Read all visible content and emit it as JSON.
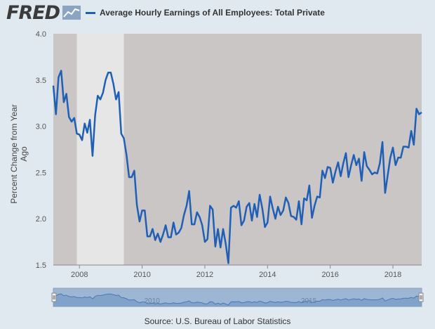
{
  "header": {
    "logo_text": "FRED",
    "logo_icon": "line-chart-icon",
    "series_title": "Average Hourly Earnings of All Employees: Total Private",
    "series_color": "#1f5fb5"
  },
  "y_axis_label": "Percent Change from Year Ago",
  "source_text": "Source: U.S. Bureau of Labor Statistics",
  "colors": {
    "plot_bg": "#cbc6c6",
    "recession": "#e6e6e6",
    "line": "#1f5fb5",
    "page_bg": "#e1e9f0"
  },
  "navigator": {
    "tick_labels": [
      "2010",
      "2015"
    ]
  },
  "chart_data": {
    "type": "line",
    "title": "",
    "ylabel": "Percent Change from Year Ago",
    "ylim": [
      1.5,
      4.0
    ],
    "yticks": [
      "1.5",
      "2.0",
      "2.5",
      "3.0",
      "3.5",
      "4.0"
    ],
    "xlim": [
      "2007-03",
      "2018-12"
    ],
    "xticks": [
      "2008",
      "2010",
      "2012",
      "2014",
      "2016",
      "2018"
    ],
    "recession": {
      "start": "2007-12",
      "end": "2009-06"
    },
    "grid": false,
    "legend": "top-left",
    "series": [
      {
        "name": "Average Hourly Earnings of All Employees: Total Private",
        "x": [
          "2007-03",
          "2007-04",
          "2007-05",
          "2007-06",
          "2007-07",
          "2007-08",
          "2007-09",
          "2007-10",
          "2007-11",
          "2007-12",
          "2008-01",
          "2008-02",
          "2008-03",
          "2008-04",
          "2008-05",
          "2008-06",
          "2008-07",
          "2008-08",
          "2008-09",
          "2008-10",
          "2008-11",
          "2008-12",
          "2009-01",
          "2009-02",
          "2009-03",
          "2009-04",
          "2009-05",
          "2009-06",
          "2009-07",
          "2009-08",
          "2009-09",
          "2009-10",
          "2009-11",
          "2009-12",
          "2010-01",
          "2010-02",
          "2010-03",
          "2010-04",
          "2010-05",
          "2010-06",
          "2010-07",
          "2010-08",
          "2010-09",
          "2010-10",
          "2010-11",
          "2010-12",
          "2011-01",
          "2011-02",
          "2011-03",
          "2011-04",
          "2011-05",
          "2011-06",
          "2011-07",
          "2011-08",
          "2011-09",
          "2011-10",
          "2011-11",
          "2011-12",
          "2012-01",
          "2012-02",
          "2012-03",
          "2012-04",
          "2012-05",
          "2012-06",
          "2012-07",
          "2012-08",
          "2012-09",
          "2012-10",
          "2012-11",
          "2012-12",
          "2013-01",
          "2013-02",
          "2013-03",
          "2013-04",
          "2013-05",
          "2013-06",
          "2013-07",
          "2013-08",
          "2013-09",
          "2013-10",
          "2013-11",
          "2013-12",
          "2014-01",
          "2014-02",
          "2014-03",
          "2014-04",
          "2014-05",
          "2014-06",
          "2014-07",
          "2014-08",
          "2014-09",
          "2014-10",
          "2014-11",
          "2014-12",
          "2015-01",
          "2015-02",
          "2015-03",
          "2015-04",
          "2015-05",
          "2015-06",
          "2015-07",
          "2015-08",
          "2015-09",
          "2015-10",
          "2015-11",
          "2015-12",
          "2016-01",
          "2016-02",
          "2016-03",
          "2016-04",
          "2016-05",
          "2016-06",
          "2016-07",
          "2016-08",
          "2016-09",
          "2016-10",
          "2016-11",
          "2016-12",
          "2017-01",
          "2017-02",
          "2017-03",
          "2017-04",
          "2017-05",
          "2017-06",
          "2017-07",
          "2017-08",
          "2017-09",
          "2017-10",
          "2017-11",
          "2017-12",
          "2018-01",
          "2018-02",
          "2018-03",
          "2018-04",
          "2018-05",
          "2018-06",
          "2018-07",
          "2018-08",
          "2018-09",
          "2018-10",
          "2018-11",
          "2018-12"
        ],
        "values": [
          3.44,
          3.13,
          3.53,
          3.6,
          3.26,
          3.35,
          3.1,
          3.05,
          3.09,
          2.92,
          2.91,
          2.85,
          3.03,
          2.93,
          3.07,
          2.68,
          3.12,
          3.33,
          3.29,
          3.36,
          3.5,
          3.58,
          3.58,
          3.46,
          3.29,
          3.37,
          2.92,
          2.87,
          2.69,
          2.45,
          2.45,
          2.52,
          2.15,
          1.97,
          2.09,
          2.09,
          1.81,
          1.81,
          1.89,
          1.77,
          1.84,
          1.75,
          1.83,
          1.93,
          1.8,
          1.8,
          1.96,
          1.83,
          1.85,
          1.9,
          2.04,
          2.14,
          2.3,
          1.94,
          1.94,
          2.07,
          2.02,
          1.93,
          1.75,
          1.78,
          2.14,
          2.1,
          1.7,
          1.89,
          1.69,
          1.89,
          1.73,
          1.52,
          2.12,
          2.14,
          2.12,
          2.19,
          1.93,
          1.98,
          2.13,
          2.17,
          1.98,
          2.16,
          2.02,
          2.26,
          2.11,
          1.91,
          1.96,
          2.24,
          2.11,
          2.0,
          2.13,
          2.04,
          2.09,
          2.23,
          2.17,
          2.03,
          2.02,
          1.99,
          2.19,
          1.94,
          2.22,
          2.2,
          2.36,
          2.01,
          2.14,
          2.24,
          2.23,
          2.52,
          2.44,
          2.56,
          2.55,
          2.39,
          2.51,
          2.61,
          2.46,
          2.6,
          2.71,
          2.45,
          2.58,
          2.69,
          2.58,
          2.65,
          2.41,
          2.72,
          2.57,
          2.53,
          2.48,
          2.5,
          2.49,
          2.6,
          2.83,
          2.28,
          2.47,
          2.66,
          2.77,
          2.58,
          2.66,
          2.66,
          2.78,
          2.78,
          2.77,
          2.95,
          2.8,
          3.19,
          3.13,
          3.15
        ]
      }
    ]
  }
}
